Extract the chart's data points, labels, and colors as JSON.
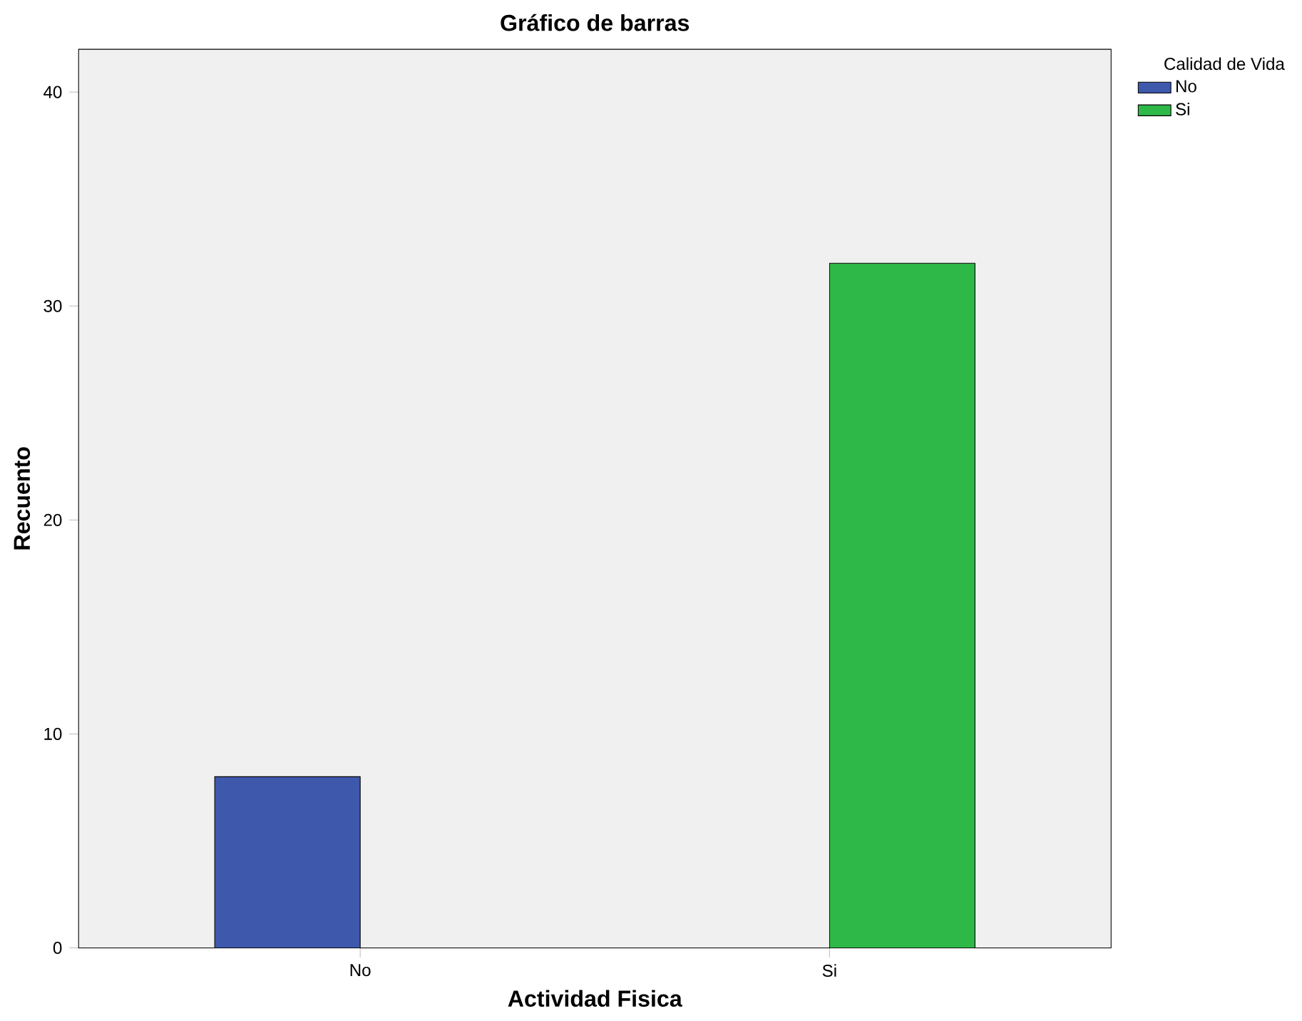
{
  "chart_data": {
    "type": "bar",
    "title": "Gráfico de barras",
    "xlabel": "Actividad Fisica",
    "ylabel": "Recuento",
    "legend_title": "Calidad de Vida",
    "categories": [
      "No",
      "Si"
    ],
    "series": [
      {
        "name": "No",
        "color": "#3e58ac",
        "values": [
          8,
          null
        ]
      },
      {
        "name": "Si",
        "color": "#2eb848",
        "values": [
          null,
          32
        ]
      }
    ],
    "ylim": [
      0,
      42
    ],
    "yticks": [
      0,
      10,
      20,
      30,
      40
    ],
    "grid": false,
    "legend": "top right"
  }
}
